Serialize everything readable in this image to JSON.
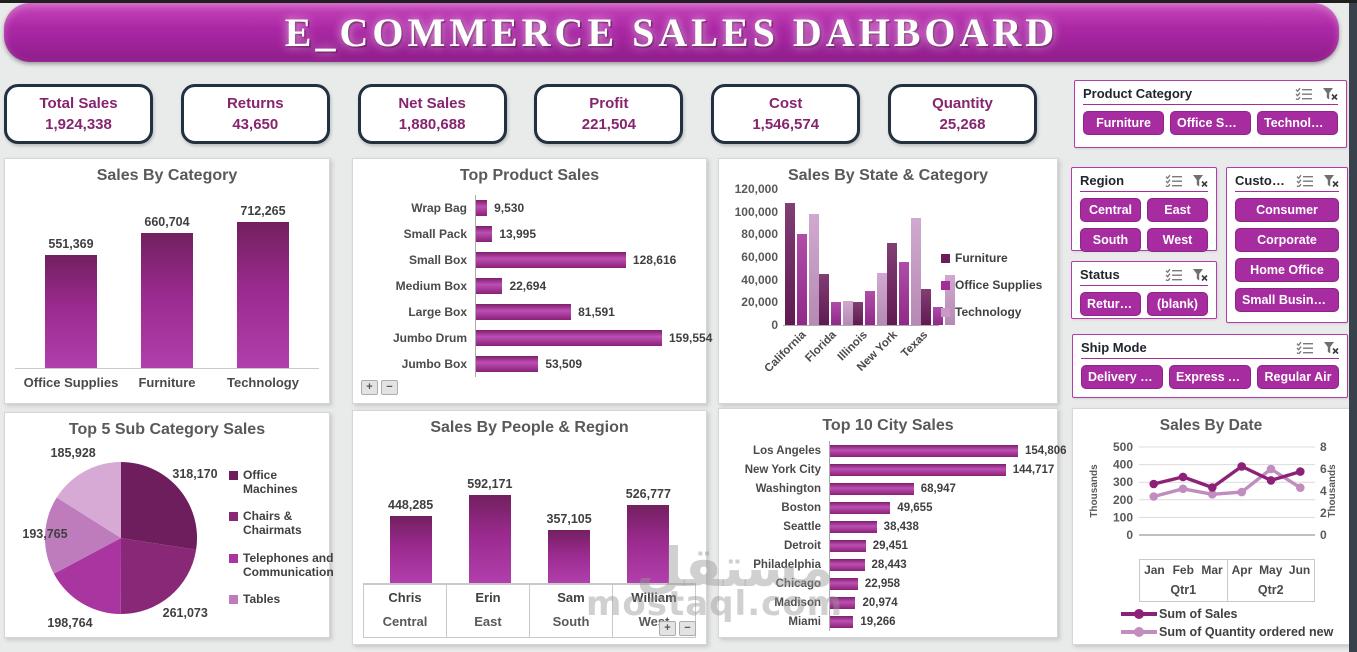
{
  "page": {
    "title": "E_COMMERCE SALES DAHBOARD"
  },
  "kpis": [
    {
      "label": "Total Sales",
      "value": "1,924,338"
    },
    {
      "label": "Returns",
      "value": "43,650"
    },
    {
      "label": "Net Sales",
      "value": "1,880,688"
    },
    {
      "label": "Profit",
      "value": "221,504"
    },
    {
      "label": "Cost",
      "value": "1,546,574"
    },
    {
      "label": "Quantity",
      "value": "25,268"
    }
  ],
  "slicers": [
    {
      "id": "product_category",
      "title": "Product Category",
      "layout": "row",
      "items": [
        "Furniture",
        "Office Sup...",
        "Technology"
      ]
    },
    {
      "id": "region",
      "title": "Region",
      "layout": "grid2",
      "items": [
        "Central",
        "East",
        "South",
        "West"
      ]
    },
    {
      "id": "customer",
      "title": "Customer...",
      "layout": "col",
      "items": [
        "Consumer",
        "Corporate",
        "Home Office",
        "Small Business"
      ]
    },
    {
      "id": "status",
      "title": "Status",
      "layout": "row",
      "items": [
        "Returned",
        "(blank)"
      ]
    },
    {
      "id": "ship_mode",
      "title": "Ship Mode",
      "layout": "row",
      "items": [
        "Delivery Tru...",
        "Express Air",
        "Regular Air"
      ]
    }
  ],
  "pivot_buttons": {
    "expand": "+",
    "collapse": "−"
  },
  "watermark": {
    "arabic": "مستقل",
    "domain": "mostaql.com"
  },
  "colors": {
    "accent": "#A62C9C",
    "kpi_text": "#86256E",
    "bar_dark": "#72205F",
    "bar_mid": "#9A2A8E",
    "bar_light": "#B13FAC"
  },
  "chart_data": [
    {
      "id": "sales_by_category",
      "type": "bar",
      "title": "Sales By Category",
      "categories": [
        "Office Supplies",
        "Furniture",
        "Technology"
      ],
      "values": [
        551369,
        660704,
        712265
      ],
      "labels": [
        "551,369",
        "660,704",
        "712,265"
      ],
      "ylabel": "",
      "xlabel": "",
      "grid": false
    },
    {
      "id": "top_product_sales",
      "type": "bar-horizontal",
      "title": "Top Product Sales",
      "categories": [
        "Wrap Bag",
        "Small Pack",
        "Small Box",
        "Medium Box",
        "Large Box",
        "Jumbo Drum",
        "Jumbo Box"
      ],
      "values": [
        9530,
        13995,
        128616,
        22694,
        81591,
        159554,
        53509
      ],
      "labels": [
        "9,530",
        "13,995",
        "128,616",
        "22,694",
        "81,591",
        "159,554",
        "53,509"
      ],
      "grid": false
    },
    {
      "id": "sales_by_state_category",
      "type": "bar-clustered",
      "title": "Sales By State & Category",
      "categories": [
        "California",
        "Florida",
        "Illinois",
        "New York",
        "Texas"
      ],
      "series": [
        {
          "name": "Furniture",
          "color": "#6B1D5B",
          "values": [
            108000,
            45000,
            20000,
            72000,
            32000
          ]
        },
        {
          "name": "Office Supplies",
          "color": "#A12E99",
          "values": [
            80000,
            20000,
            30000,
            56000,
            16000
          ]
        },
        {
          "name": "Technology",
          "color": "#C99AC8",
          "values": [
            98000,
            21000,
            46000,
            94000,
            44000
          ]
        }
      ],
      "ylim": [
        0,
        120000
      ],
      "yticks": [
        0,
        20000,
        40000,
        60000,
        80000,
        100000,
        120000
      ],
      "legend_position": "right",
      "grid": false
    },
    {
      "id": "top5_subcategory",
      "type": "pie",
      "title": "Top 5 Sub Category Sales",
      "slices": [
        {
          "value": 318170,
          "label": "318,170",
          "color": "#6E1E5D",
          "legend": "Office Machines"
        },
        {
          "value": 261073,
          "label": "261,073",
          "color": "#8A2878",
          "legend": "Chairs & Chairmats"
        },
        {
          "value": 198764,
          "label": "198,764",
          "color": "#A935A0",
          "legend": "Telephones and Communication"
        },
        {
          "value": 193765,
          "label": "193,765",
          "color": "#BE7CBD",
          "legend": "Tables"
        },
        {
          "value": 185928,
          "label": "185,928",
          "color": "#D7A9D5",
          "legend": null
        }
      ],
      "legend_position": "right"
    },
    {
      "id": "sales_by_people_region",
      "type": "bar",
      "title": "Sales By People & Region",
      "categories": [
        {
          "name": "Chris",
          "region": "Central"
        },
        {
          "name": "Erin",
          "region": "East"
        },
        {
          "name": "Sam",
          "region": "South"
        },
        {
          "name": "William",
          "region": "West"
        }
      ],
      "values": [
        448285,
        592171,
        357105,
        526777
      ],
      "labels": [
        "448,285",
        "592,171",
        "357,105",
        "526,777"
      ],
      "grid": false
    },
    {
      "id": "top10_city",
      "type": "bar-horizontal",
      "title": "Top 10 City Sales",
      "categories": [
        "Los Angeles",
        "New York City",
        "Washington",
        "Boston",
        "Seattle",
        "Detroit",
        "Philadelphia",
        "Chicago",
        "Madison",
        "Miami"
      ],
      "values": [
        154806,
        144717,
        68947,
        49655,
        38438,
        29451,
        28443,
        22958,
        20974,
        19266
      ],
      "labels": [
        "154,806",
        "144,717",
        "68,947",
        "49,655",
        "38,438",
        "29,451",
        "28,443",
        "22,958",
        "20,974",
        "19,266"
      ],
      "grid": false
    },
    {
      "id": "sales_by_date",
      "type": "line",
      "title": "Sales By Date",
      "x": [
        "Jan",
        "Feb",
        "Mar",
        "Apr",
        "May",
        "Jun"
      ],
      "groups": [
        {
          "label": "Qtr1"
        },
        {
          "label": "Qtr2"
        }
      ],
      "series": [
        {
          "name": "Sum of Sales",
          "color": "#8B2277",
          "axis": "left",
          "values": [
            290,
            330,
            270,
            390,
            310,
            360
          ]
        },
        {
          "name": "Sum of Quantity ordered new",
          "color": "#C08DBE",
          "axis": "right",
          "values": [
            3.5,
            4.2,
            3.7,
            3.9,
            6.0,
            4.3
          ]
        }
      ],
      "left_axis": {
        "label": "Thousands",
        "ticks": [
          0,
          100,
          200,
          300,
          400,
          500
        ],
        "max": 500
      },
      "right_axis": {
        "label": "Thousands",
        "ticks": [
          0,
          2,
          4,
          6,
          8
        ],
        "max": 8
      },
      "grid": true,
      "legend_position": "bottom"
    }
  ]
}
